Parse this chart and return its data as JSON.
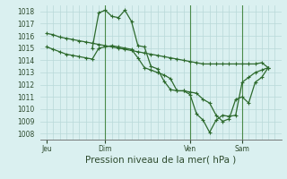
{
  "background_color": "#ceeaea",
  "plot_bg_color": "#daf0f0",
  "grid_color": "#b8d8d8",
  "line_color": "#2d6a2d",
  "vline_color": "#4a8a4a",
  "ylim": [
    1007.5,
    1018.5
  ],
  "yticks": [
    1008,
    1009,
    1010,
    1011,
    1012,
    1013,
    1014,
    1015,
    1016,
    1017,
    1018
  ],
  "xlabel": "Pression niveau de la mer( hPa )",
  "xtick_labels": [
    "Jeu",
    "Dim",
    "Ven",
    "Sam"
  ],
  "xtick_positions": [
    0,
    9,
    22,
    30
  ],
  "xlim": [
    -1,
    36
  ],
  "series": [
    {
      "x": [
        0,
        1,
        2,
        3,
        4,
        5,
        6,
        7,
        8,
        9,
        10,
        11,
        12,
        13,
        14,
        15,
        16,
        17,
        18,
        19,
        20,
        21,
        22,
        23,
        24,
        25,
        26,
        27,
        28,
        29,
        30,
        31,
        32,
        33,
        34
      ],
      "y": [
        1016.2,
        1016.1,
        1015.9,
        1015.8,
        1015.7,
        1015.6,
        1015.5,
        1015.4,
        1015.3,
        1015.2,
        1015.1,
        1015.0,
        1014.9,
        1014.8,
        1014.7,
        1014.6,
        1014.5,
        1014.4,
        1014.3,
        1014.2,
        1014.1,
        1014.0,
        1013.9,
        1013.8,
        1013.7,
        1013.7,
        1013.7,
        1013.7,
        1013.7,
        1013.7,
        1013.7,
        1013.7,
        1013.7,
        1013.8,
        1013.4
      ],
      "marker": "+",
      "markersize": 3.0,
      "linewidth": 0.9
    },
    {
      "x": [
        0,
        1,
        2,
        3,
        4,
        5,
        6,
        7,
        8,
        9,
        10,
        11,
        12,
        13,
        14,
        15,
        16,
        17,
        18,
        19,
        20,
        21,
        22,
        23,
        24,
        25,
        26,
        27,
        28,
        29,
        30,
        31,
        32,
        33,
        34
      ],
      "y": [
        1015.1,
        1014.9,
        1014.7,
        1014.5,
        1014.4,
        1014.3,
        1014.2,
        1014.1,
        1015.0,
        1015.1,
        1015.2,
        1015.1,
        1015.0,
        1014.9,
        1014.2,
        1013.4,
        1013.2,
        1013.0,
        1012.8,
        1012.5,
        1011.5,
        1011.5,
        1011.4,
        1011.3,
        1010.8,
        1010.5,
        1009.5,
        1009.0,
        1009.2,
        1010.8,
        1011.0,
        1010.5,
        1012.2,
        1012.6,
        1013.4
      ],
      "marker": "+",
      "markersize": 3.0,
      "linewidth": 0.9
    },
    {
      "x": [
        7,
        8,
        9,
        10,
        11,
        12,
        13,
        14,
        15,
        16,
        17,
        18,
        19,
        20,
        21,
        22,
        23,
        24,
        25,
        26,
        27,
        28,
        29,
        30,
        31,
        32,
        33,
        34
      ],
      "y": [
        1015.0,
        1017.9,
        1018.1,
        1017.6,
        1017.5,
        1018.1,
        1017.2,
        1015.2,
        1015.1,
        1013.5,
        1013.3,
        1012.3,
        1011.6,
        1011.5,
        1011.5,
        1011.2,
        1009.6,
        1009.1,
        1008.1,
        1009.1,
        1009.5,
        1009.4,
        1009.5,
        1012.2,
        1012.6,
        1013.0,
        1013.2,
        1013.4
      ],
      "marker": "+",
      "markersize": 3.0,
      "linewidth": 0.9
    }
  ],
  "vline_positions": [
    9,
    22,
    30
  ],
  "tick_fontsize": 5.5,
  "xlabel_fontsize": 7.5
}
